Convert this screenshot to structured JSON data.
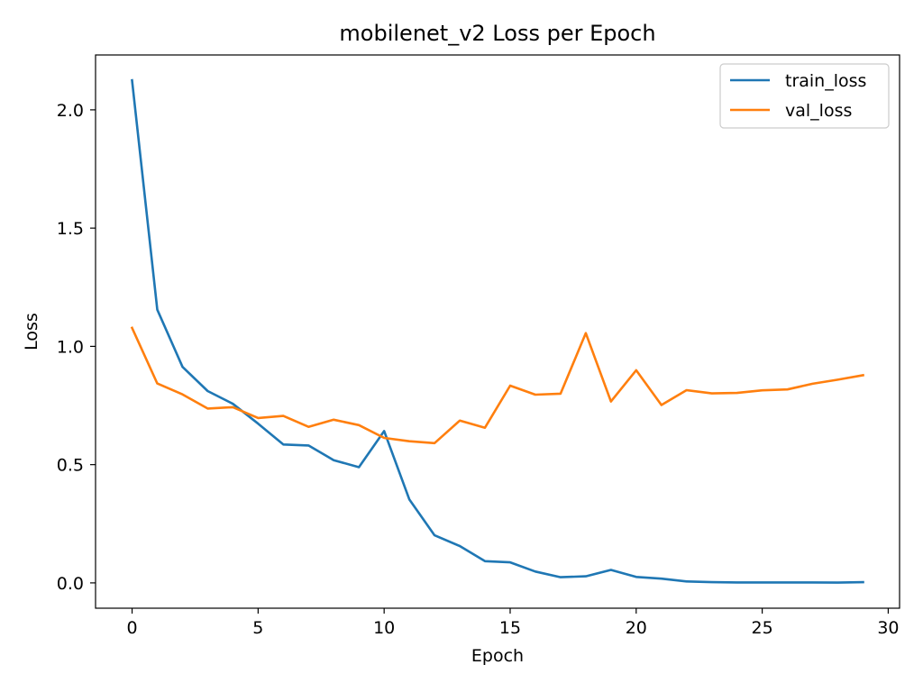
{
  "chart_data": {
    "type": "line",
    "title": "mobilenet_v2 Loss per Epoch",
    "xlabel": "Epoch",
    "ylabel": "Loss",
    "xlim": [
      -1.45,
      30.45
    ],
    "ylim": [
      -0.107,
      2.232
    ],
    "xticks": [
      0,
      5,
      10,
      15,
      20,
      25,
      30
    ],
    "yticks": [
      0.0,
      0.5,
      1.0,
      1.5,
      2.0
    ],
    "xtick_labels": [
      "0",
      "5",
      "10",
      "15",
      "20",
      "25",
      "30"
    ],
    "ytick_labels": [
      "0.0",
      "0.5",
      "1.0",
      "1.5",
      "2.0"
    ],
    "grid": false,
    "legend": "top-right",
    "x": [
      0,
      1,
      2,
      3,
      4,
      5,
      6,
      7,
      8,
      9,
      10,
      11,
      12,
      13,
      14,
      15,
      16,
      17,
      18,
      19,
      20,
      21,
      22,
      23,
      24,
      25,
      26,
      27,
      28,
      29
    ],
    "series": [
      {
        "name": "train_loss",
        "color": "#1f77b4",
        "values": [
          2.125,
          1.155,
          0.913,
          0.811,
          0.757,
          0.673,
          0.585,
          0.581,
          0.519,
          0.489,
          0.642,
          0.353,
          0.201,
          0.156,
          0.092,
          0.087,
          0.048,
          0.024,
          0.028,
          0.055,
          0.025,
          0.018,
          0.006,
          0.003,
          0.002,
          0.002,
          0.002,
          0.002,
          0.001,
          0.003
        ]
      },
      {
        "name": "val_loss",
        "color": "#ff7f0e",
        "values": [
          1.078,
          0.843,
          0.797,
          0.737,
          0.743,
          0.697,
          0.706,
          0.66,
          0.69,
          0.667,
          0.613,
          0.599,
          0.591,
          0.686,
          0.656,
          0.834,
          0.796,
          0.8,
          1.056,
          0.767,
          0.899,
          0.752,
          0.815,
          0.801,
          0.803,
          0.814,
          0.818,
          0.842,
          0.859,
          0.878
        ]
      }
    ]
  }
}
